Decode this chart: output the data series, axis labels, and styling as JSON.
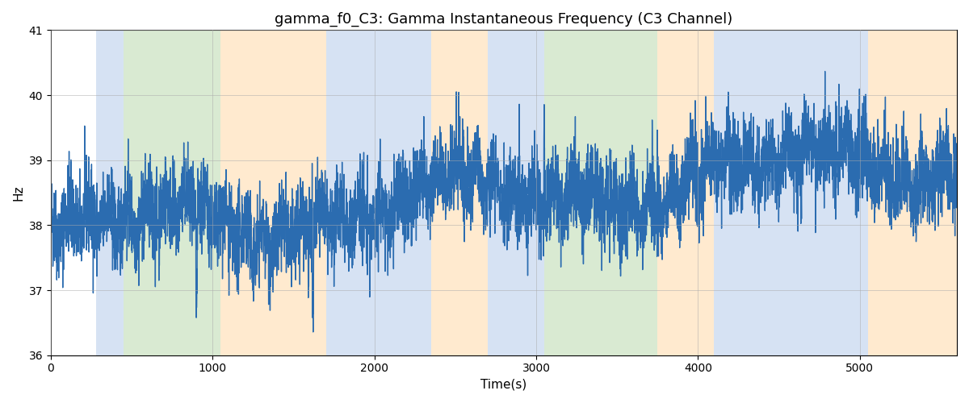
{
  "title": "gamma_f0_C3: Gamma Instantaneous Frequency (C3 Channel)",
  "xlabel": "Time(s)",
  "ylabel": "Hz",
  "ylim": [
    36,
    41
  ],
  "xlim": [
    0,
    5600
  ],
  "yticks": [
    36,
    37,
    38,
    39,
    40,
    41
  ],
  "xticks": [
    0,
    1000,
    2000,
    3000,
    4000,
    5000
  ],
  "line_color": "#2b6cb0",
  "line_width": 1.0,
  "background_color": "#ffffff",
  "grid_color": "#aaaaaa",
  "title_fontsize": 13,
  "label_fontsize": 11,
  "colored_regions": [
    {
      "xmin": 280,
      "xmax": 450,
      "color": "#aec6e8",
      "alpha": 0.5
    },
    {
      "xmin": 450,
      "xmax": 1050,
      "color": "#b5d6a7",
      "alpha": 0.5
    },
    {
      "xmin": 1050,
      "xmax": 1700,
      "color": "#ffd6a0",
      "alpha": 0.5
    },
    {
      "xmin": 1700,
      "xmax": 2050,
      "color": "#aec6e8",
      "alpha": 0.5
    },
    {
      "xmin": 2050,
      "xmax": 2350,
      "color": "#aec6e8",
      "alpha": 0.5
    },
    {
      "xmin": 2350,
      "xmax": 2700,
      "color": "#ffd6a0",
      "alpha": 0.5
    },
    {
      "xmin": 2700,
      "xmax": 2850,
      "color": "#aec6e8",
      "alpha": 0.5
    },
    {
      "xmin": 2850,
      "xmax": 3050,
      "color": "#aec6e8",
      "alpha": 0.5
    },
    {
      "xmin": 3050,
      "xmax": 3200,
      "color": "#b5d6a7",
      "alpha": 0.5
    },
    {
      "xmin": 3200,
      "xmax": 3750,
      "color": "#b5d6a7",
      "alpha": 0.5
    },
    {
      "xmin": 3750,
      "xmax": 4100,
      "color": "#ffd6a0",
      "alpha": 0.5
    },
    {
      "xmin": 4100,
      "xmax": 4550,
      "color": "#aec6e8",
      "alpha": 0.5
    },
    {
      "xmin": 4550,
      "xmax": 4850,
      "color": "#aec6e8",
      "alpha": 0.5
    },
    {
      "xmin": 4850,
      "xmax": 5050,
      "color": "#aec6e8",
      "alpha": 0.5
    },
    {
      "xmin": 5050,
      "xmax": 5600,
      "color": "#ffd6a0",
      "alpha": 0.5
    }
  ],
  "seed": 42,
  "n_points": 5600,
  "signal_mean_start": 37.8,
  "signal_mean_end": 39.1,
  "noise_std": 0.35
}
